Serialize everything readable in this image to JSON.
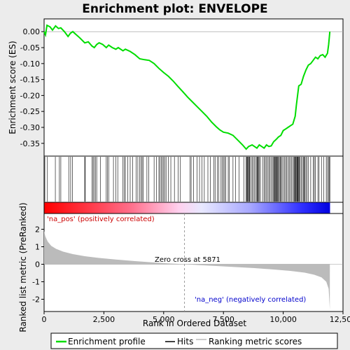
{
  "chart_data": {
    "type": "line",
    "title": "Enrichment plot: ENVELOPE",
    "xlabel": "Rank in Ordered Dataset",
    "ylabel_top": "Enrichment score (ES)",
    "ylabel_bottom": "Ranked list metric (PreRanked)",
    "xlim": [
      0,
      12500
    ],
    "x_ticks": [
      0,
      2500,
      5000,
      7500,
      10000,
      12500
    ],
    "x_tick_labels": [
      "0",
      "2,500",
      "5,000",
      "7,500",
      "10,000",
      "12,500"
    ],
    "es_ylim": [
      -0.39,
      0.04
    ],
    "es_ticks": [
      0.0,
      -0.05,
      -0.1,
      -0.15,
      -0.2,
      -0.25,
      -0.3,
      -0.35
    ],
    "es_tick_labels": [
      "0.00",
      "-0.05",
      "-0.10",
      "-0.15",
      "-0.20",
      "-0.25",
      "-0.30",
      "-0.35"
    ],
    "metric_ylim": [
      -2.7,
      2.9
    ],
    "metric_ticks": [
      2,
      1,
      0,
      -1,
      -2
    ],
    "metric_tick_labels": [
      "2",
      "1",
      "0",
      "-1",
      "-2"
    ],
    "n_genes": 11950,
    "zero_cross": 5871,
    "zero_cross_label": "Zero cross at 5871",
    "pos_label": "'na_pos' (positively correlated)",
    "neg_label": "'na_neg' (negatively correlated)",
    "es_profile": [
      [
        0,
        0.0
      ],
      [
        60,
        -0.01
      ],
      [
        120,
        0.02
      ],
      [
        250,
        0.015
      ],
      [
        350,
        0.005
      ],
      [
        480,
        0.018
      ],
      [
        600,
        0.01
      ],
      [
        700,
        0.012
      ],
      [
        850,
        0.0
      ],
      [
        1000,
        -0.015
      ],
      [
        1100,
        -0.005
      ],
      [
        1200,
        0.0
      ],
      [
        1350,
        -0.01
      ],
      [
        1500,
        -0.02
      ],
      [
        1700,
        -0.035
      ],
      [
        1850,
        -0.032
      ],
      [
        2000,
        -0.045
      ],
      [
        2100,
        -0.05
      ],
      [
        2200,
        -0.04
      ],
      [
        2300,
        -0.035
      ],
      [
        2450,
        -0.04
      ],
      [
        2600,
        -0.05
      ],
      [
        2700,
        -0.042
      ],
      [
        2850,
        -0.05
      ],
      [
        3000,
        -0.055
      ],
      [
        3100,
        -0.05
      ],
      [
        3300,
        -0.06
      ],
      [
        3400,
        -0.055
      ],
      [
        3600,
        -0.062
      ],
      [
        3800,
        -0.072
      ],
      [
        4000,
        -0.085
      ],
      [
        4200,
        -0.088
      ],
      [
        4400,
        -0.09
      ],
      [
        4600,
        -0.1
      ],
      [
        4800,
        -0.115
      ],
      [
        5000,
        -0.128
      ],
      [
        5200,
        -0.14
      ],
      [
        5400,
        -0.155
      ],
      [
        5600,
        -0.172
      ],
      [
        5800,
        -0.188
      ],
      [
        6000,
        -0.205
      ],
      [
        6200,
        -0.22
      ],
      [
        6400,
        -0.235
      ],
      [
        6600,
        -0.25
      ],
      [
        6800,
        -0.265
      ],
      [
        7000,
        -0.283
      ],
      [
        7200,
        -0.298
      ],
      [
        7350,
        -0.308
      ],
      [
        7500,
        -0.315
      ],
      [
        7700,
        -0.318
      ],
      [
        7900,
        -0.325
      ],
      [
        8100,
        -0.34
      ],
      [
        8300,
        -0.355
      ],
      [
        8450,
        -0.368
      ],
      [
        8550,
        -0.36
      ],
      [
        8700,
        -0.355
      ],
      [
        8800,
        -0.36
      ],
      [
        8900,
        -0.365
      ],
      [
        9000,
        -0.355
      ],
      [
        9100,
        -0.36
      ],
      [
        9200,
        -0.365
      ],
      [
        9300,
        -0.355
      ],
      [
        9400,
        -0.36
      ],
      [
        9500,
        -0.358
      ],
      [
        9600,
        -0.345
      ],
      [
        9700,
        -0.338
      ],
      [
        9800,
        -0.33
      ],
      [
        9900,
        -0.325
      ],
      [
        10000,
        -0.31
      ],
      [
        10100,
        -0.305
      ],
      [
        10200,
        -0.3
      ],
      [
        10300,
        -0.295
      ],
      [
        10400,
        -0.29
      ],
      [
        10500,
        -0.265
      ],
      [
        10550,
        -0.23
      ],
      [
        10600,
        -0.2
      ],
      [
        10650,
        -0.17
      ],
      [
        10750,
        -0.165
      ],
      [
        10850,
        -0.14
      ],
      [
        10950,
        -0.12
      ],
      [
        11050,
        -0.105
      ],
      [
        11150,
        -0.1
      ],
      [
        11250,
        -0.09
      ],
      [
        11350,
        -0.08
      ],
      [
        11450,
        -0.085
      ],
      [
        11550,
        -0.075
      ],
      [
        11650,
        -0.072
      ],
      [
        11750,
        -0.08
      ],
      [
        11850,
        -0.068
      ],
      [
        11900,
        -0.04
      ],
      [
        11950,
        0.0
      ]
    ],
    "hits": [
      30,
      140,
      470,
      640,
      700,
      1030,
      1110,
      1180,
      1700,
      1720,
      2000,
      2050,
      2100,
      2150,
      2200,
      2350,
      2600,
      2650,
      2700,
      2900,
      3000,
      3080,
      3300,
      3350,
      3400,
      3500,
      3600,
      3700,
      3850,
      3920,
      4000,
      4050,
      4100,
      4150,
      4300,
      4380,
      4600,
      4700,
      4800,
      4850,
      4900,
      4950,
      5000,
      5050,
      5100,
      5200,
      5300,
      5450,
      5600,
      5700,
      6100,
      6150,
      6250,
      6400,
      6500,
      6600,
      6700,
      6850,
      6950,
      7100,
      7150,
      7250,
      7300,
      7400,
      7450,
      7500,
      7550,
      7600,
      7700,
      7750,
      7900,
      8000,
      8150,
      8350,
      8450,
      8480,
      8500,
      8520,
      8550,
      8580,
      8600,
      8650,
      8700,
      8750,
      8800,
      8850,
      8900,
      8920,
      8950,
      8980,
      9000,
      9050,
      9150,
      9200,
      9250,
      9300,
      9350,
      9400,
      9450,
      9500,
      9550,
      9600,
      9620,
      9650,
      9680,
      9700,
      9720,
      9750,
      9780,
      9800,
      9850,
      9880,
      9900,
      9950,
      10000,
      10050,
      10100,
      10150,
      10200,
      10250,
      10300,
      10350,
      10400,
      10450,
      10480,
      10500,
      10520,
      10550,
      10580,
      10600,
      10620,
      10650,
      10680,
      10700,
      10750,
      10800,
      10850,
      10880,
      10900,
      10950,
      11000,
      11050,
      11150,
      11250,
      11300,
      11350,
      11450,
      11500,
      11600,
      11700,
      11800,
      11850,
      11900,
      11920,
      11950
    ],
    "metric_curve": [
      [
        0,
        1.9
      ],
      [
        50,
        1.6
      ],
      [
        150,
        1.3
      ],
      [
        300,
        1.05
      ],
      [
        500,
        0.88
      ],
      [
        800,
        0.72
      ],
      [
        1200,
        0.58
      ],
      [
        1700,
        0.46
      ],
      [
        2300,
        0.36
      ],
      [
        3000,
        0.27
      ],
      [
        3800,
        0.18
      ],
      [
        4600,
        0.1
      ],
      [
        5300,
        0.04
      ],
      [
        5871,
        0.0
      ],
      [
        6500,
        -0.05
      ],
      [
        7200,
        -0.1
      ],
      [
        8000,
        -0.16
      ],
      [
        8800,
        -0.22
      ],
      [
        9600,
        -0.3
      ],
      [
        10300,
        -0.38
      ],
      [
        10900,
        -0.48
      ],
      [
        11300,
        -0.6
      ],
      [
        11600,
        -0.75
      ],
      [
        11800,
        -1.0
      ],
      [
        11900,
        -1.4
      ],
      [
        11950,
        -2.6
      ]
    ]
  },
  "legend": {
    "items": [
      {
        "label": "Enrichment profile",
        "color": "#00dd00"
      },
      {
        "label": "Hits",
        "color": "#000000"
      },
      {
        "label": "Ranking metric scores",
        "color": "#bbbbbb"
      }
    ]
  },
  "colors": {
    "es_line": "#00dd00",
    "hit_line": "#000000",
    "metric_fill": "#bbbbbb",
    "pos_label": "#cc0000",
    "neg_label": "#0000cc",
    "bar_pos": "#ff0000",
    "bar_neg": "#0000ff"
  }
}
